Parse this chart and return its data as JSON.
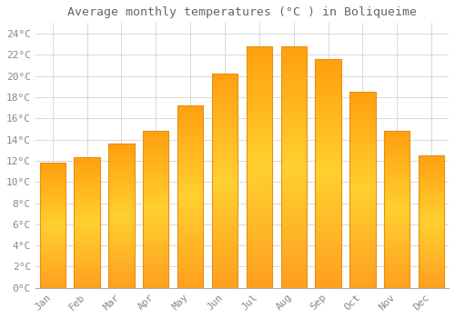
{
  "title": "Average monthly temperatures (°C ) in Boliqueime",
  "months": [
    "Jan",
    "Feb",
    "Mar",
    "Apr",
    "May",
    "Jun",
    "Jul",
    "Aug",
    "Sep",
    "Oct",
    "Nov",
    "Dec"
  ],
  "temperatures": [
    11.8,
    12.3,
    13.6,
    14.8,
    17.2,
    20.2,
    22.8,
    22.8,
    21.6,
    18.5,
    14.8,
    12.5
  ],
  "bar_color_top": "#FFA020",
  "bar_color_mid": "#FFB830",
  "bar_color_bot": "#FFAA10",
  "bar_edge_color": "#E89010",
  "background_color": "#FFFFFF",
  "grid_color": "#D8D8D8",
  "ylim": [
    0,
    25
  ],
  "yticks": [
    0,
    2,
    4,
    6,
    8,
    10,
    12,
    14,
    16,
    18,
    20,
    22,
    24
  ],
  "title_fontsize": 9.5,
  "tick_fontsize": 8,
  "title_color": "#666666",
  "tick_color": "#888888",
  "font_family": "monospace"
}
